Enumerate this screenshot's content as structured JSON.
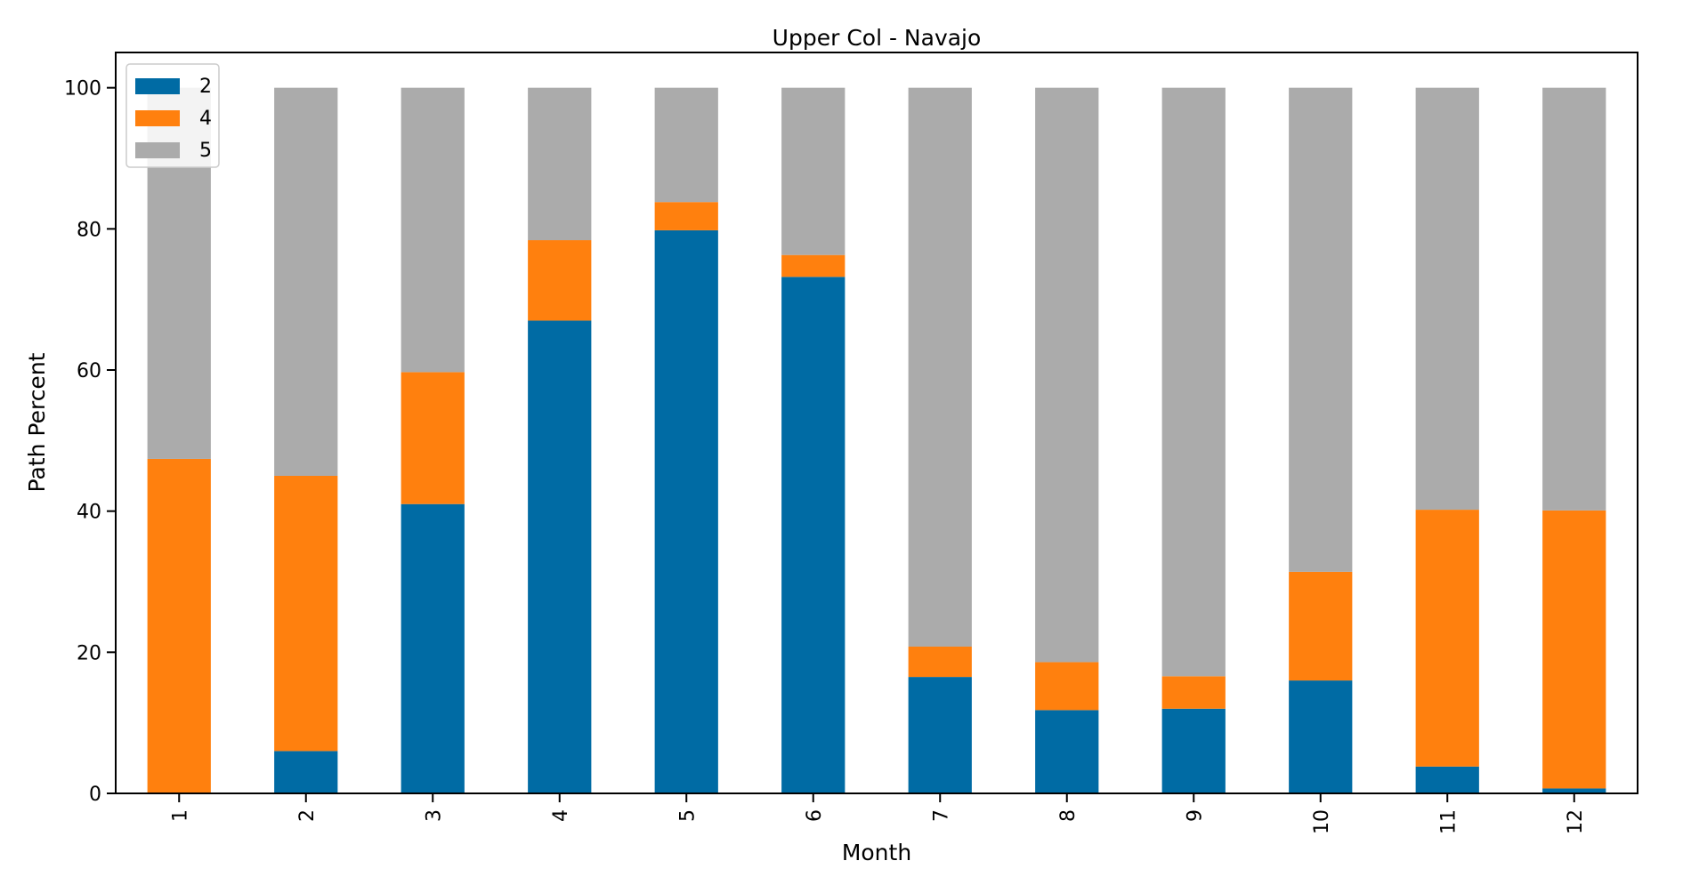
{
  "chart_data": {
    "type": "bar",
    "stacked": true,
    "title": "Upper Col - Navajo",
    "xlabel": "Month",
    "ylabel": "Path Percent",
    "categories": [
      "1",
      "2",
      "3",
      "4",
      "5",
      "6",
      "7",
      "8",
      "9",
      "10",
      "11",
      "12"
    ],
    "ylim": [
      0,
      105
    ],
    "yticks": [
      0,
      20,
      40,
      60,
      80,
      100
    ],
    "grid": false,
    "legend_position": "top-left",
    "series": [
      {
        "name": "2",
        "color": "#006BA4",
        "values": [
          0,
          6,
          41,
          67,
          79.8,
          73.2,
          16.5,
          11.8,
          12.0,
          16.0,
          3.8,
          0.7
        ]
      },
      {
        "name": "4",
        "color": "#FF800E",
        "values": [
          47.4,
          39.0,
          18.7,
          11.4,
          4.0,
          3.1,
          4.3,
          6.8,
          4.6,
          15.4,
          36.4,
          39.4
        ]
      },
      {
        "name": "5",
        "color": "#ABABAB",
        "values": [
          52.6,
          55.0,
          40.3,
          21.6,
          16.2,
          23.7,
          79.2,
          81.4,
          83.4,
          68.6,
          59.8,
          59.9
        ]
      }
    ]
  }
}
